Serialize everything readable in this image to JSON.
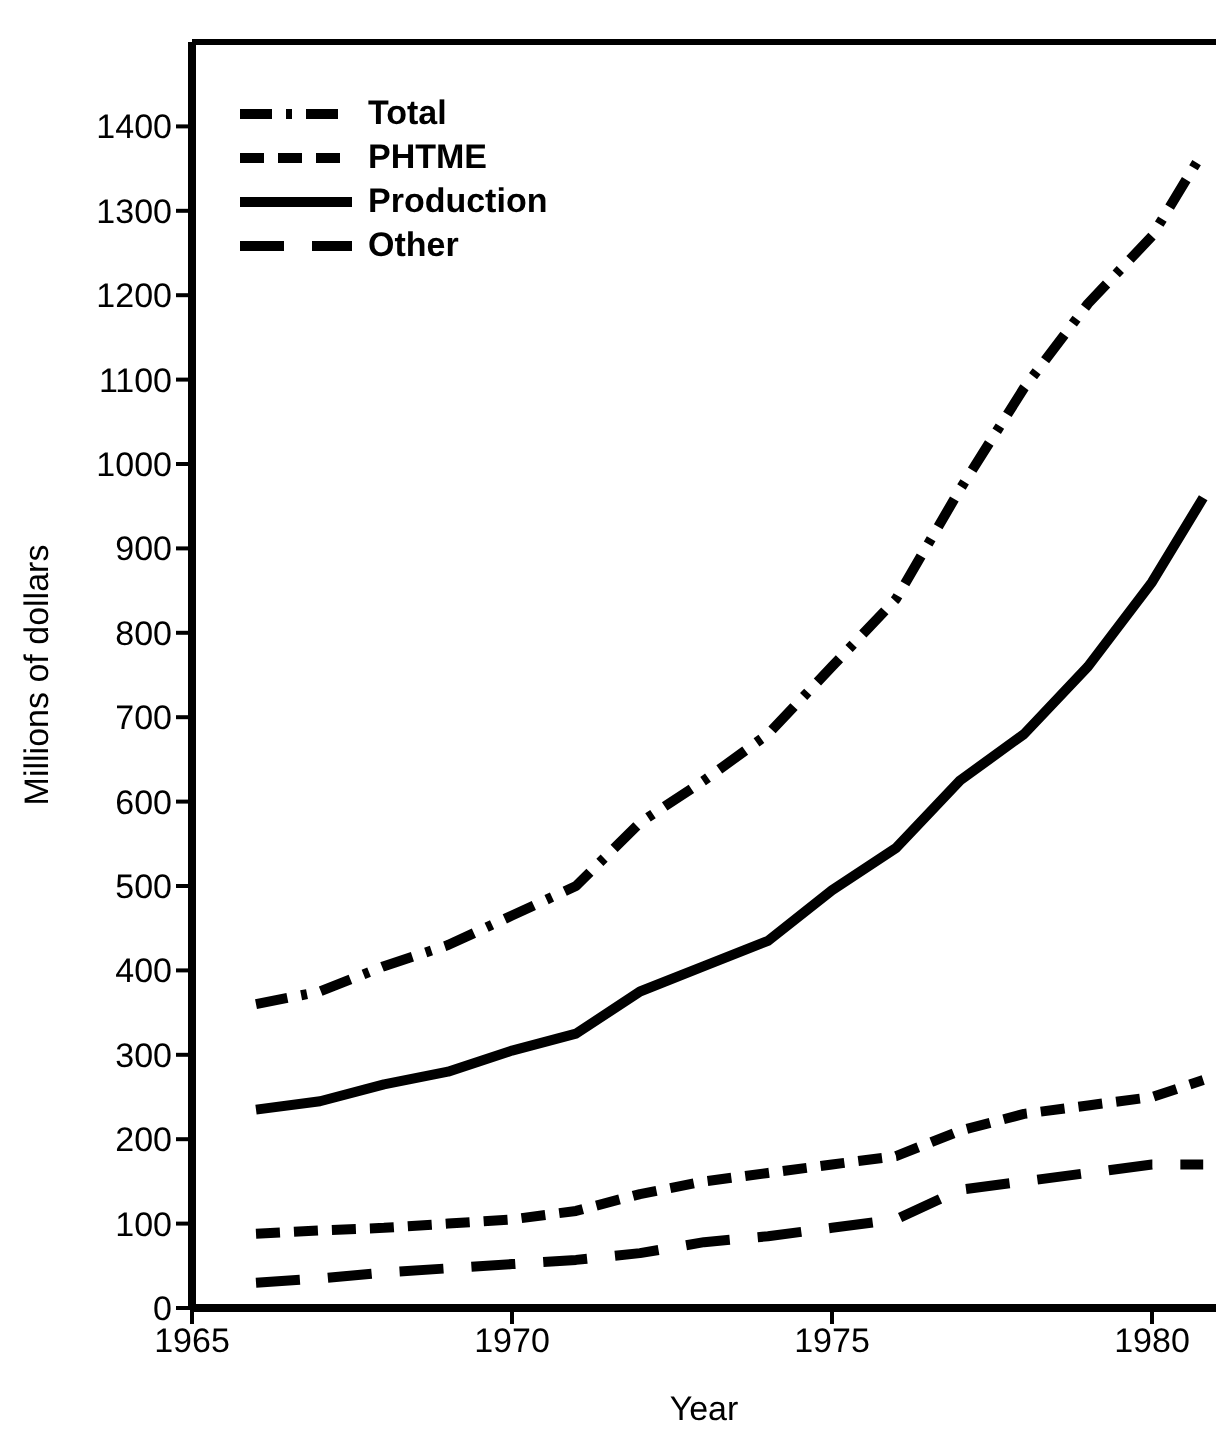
{
  "chart_data": {
    "type": "line",
    "xlabel": "Year",
    "ylabel": "Millions of dollars",
    "x": [
      1966,
      1967,
      1968,
      1969,
      1970,
      1971,
      1972,
      1973,
      1974,
      1975,
      1976,
      1977,
      1978,
      1979,
      1980,
      1980.8
    ],
    "xlim": [
      1965,
      1981
    ],
    "xticks": [
      1965,
      1970,
      1975,
      1980
    ],
    "ylim": [
      0,
      1500
    ],
    "yticks": [
      0,
      100,
      200,
      300,
      400,
      500,
      600,
      700,
      800,
      900,
      1000,
      1100,
      1200,
      1300,
      1400
    ],
    "series": [
      {
        "name": "Total",
        "color": "#000000",
        "line_style": "dashdot",
        "values": [
          360,
          375,
          405,
          430,
          465,
          500,
          575,
          625,
          680,
          760,
          840,
          970,
          1090,
          1190,
          1270,
          1370
        ]
      },
      {
        "name": "PHTME",
        "color": "#000000",
        "line_style": "dashed",
        "values": [
          88,
          92,
          95,
          100,
          105,
          115,
          135,
          150,
          160,
          170,
          180,
          210,
          230,
          240,
          250,
          270
        ]
      },
      {
        "name": "Production",
        "color": "#000000",
        "line_style": "solid",
        "values": [
          235,
          245,
          265,
          280,
          305,
          325,
          375,
          405,
          435,
          495,
          545,
          625,
          680,
          760,
          860,
          960
        ]
      },
      {
        "name": "Other",
        "color": "#000000",
        "line_style": "longdashed",
        "values": [
          30,
          35,
          42,
          47,
          52,
          57,
          65,
          78,
          85,
          95,
          105,
          140,
          150,
          160,
          170,
          170
        ]
      }
    ],
    "legend": "top left",
    "grid": false,
    "marker": "none"
  }
}
